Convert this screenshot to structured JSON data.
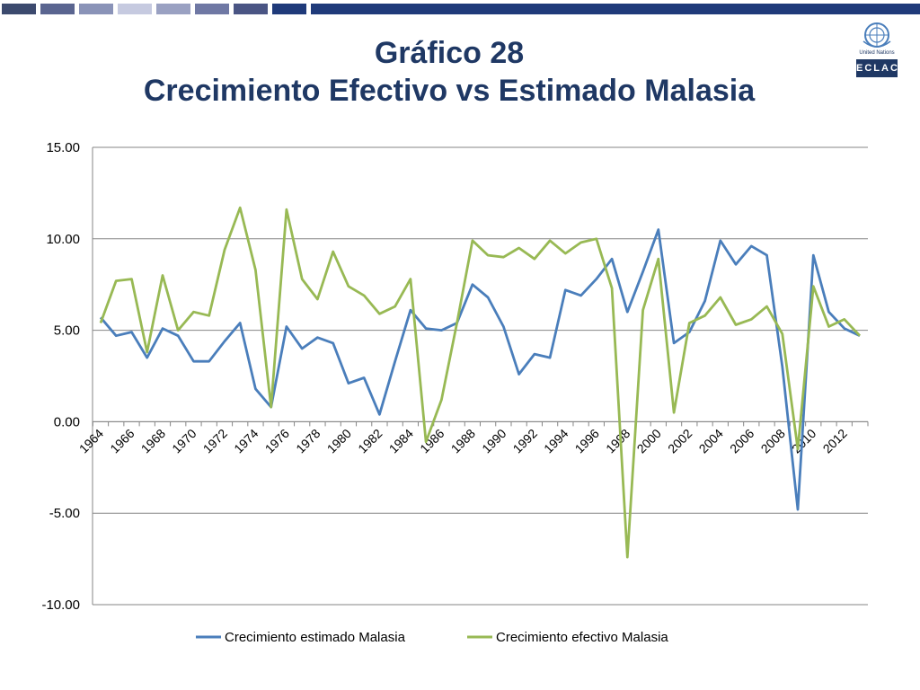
{
  "slide": {
    "title_line1": "Gráfico 28",
    "title_line2": "Crecimiento Efectivo vs Estimado Malasia",
    "logo_un_text": "United Nations",
    "logo_eclac_text": "ECLAC",
    "topbar_colors": [
      "#3c4a6e",
      "#5a6590",
      "#8a93b8",
      "#c6cae0",
      "#9aa1c2",
      "#6f78a4",
      "#4a5584",
      "#1f3a7a",
      "#1f3a7a"
    ]
  },
  "chart_data": {
    "type": "line",
    "title": "",
    "xlabel": "",
    "ylabel": "",
    "ylim": [
      -10,
      15
    ],
    "yticks": [
      15,
      10,
      5,
      0,
      -5,
      -10
    ],
    "ytick_labels": [
      "15.00",
      "10.00",
      "5.00",
      "0.00",
      "-5.00",
      "-10.00"
    ],
    "x": [
      1964,
      1965,
      1966,
      1967,
      1968,
      1969,
      1970,
      1971,
      1972,
      1973,
      1974,
      1975,
      1976,
      1977,
      1978,
      1979,
      1980,
      1981,
      1982,
      1983,
      1984,
      1985,
      1986,
      1987,
      1988,
      1989,
      1990,
      1991,
      1992,
      1993,
      1994,
      1995,
      1996,
      1997,
      1998,
      1999,
      2000,
      2001,
      2002,
      2003,
      2004,
      2005,
      2006,
      2007,
      2008,
      2009,
      2010,
      2011,
      2012,
      2013
    ],
    "xtick_labels": [
      "1964",
      "1966",
      "1968",
      "1970",
      "1972",
      "1974",
      "1976",
      "1978",
      "1980",
      "1982",
      "1984",
      "1986",
      "1988",
      "1990",
      "1992",
      "1994",
      "1996",
      "1998",
      "2000",
      "2002",
      "2004",
      "2006",
      "2008",
      "2010",
      "2012"
    ],
    "grid": "horizontal",
    "legend": "bottom",
    "series": [
      {
        "name": "Crecimiento estimado Malasia",
        "color": "#4a7ebb",
        "values": [
          5.7,
          4.7,
          4.9,
          3.5,
          5.1,
          4.7,
          3.3,
          3.3,
          4.4,
          5.4,
          1.8,
          0.8,
          5.2,
          4.0,
          4.6,
          4.3,
          2.1,
          2.4,
          0.4,
          3.3,
          6.1,
          5.1,
          5.0,
          5.4,
          7.5,
          6.8,
          5.2,
          2.6,
          3.7,
          3.5,
          7.2,
          6.9,
          7.8,
          8.9,
          6.0,
          8.2,
          10.5,
          4.3,
          4.9,
          6.6,
          9.9,
          8.6,
          9.6,
          9.1,
          3.0,
          -4.8,
          9.1,
          6.0,
          5.1,
          4.7
        ]
      },
      {
        "name": "Crecimiento efectivo Malasia",
        "color": "#98b954",
        "values": [
          5.4,
          7.7,
          7.8,
          3.8,
          8.0,
          5.0,
          6.0,
          5.8,
          9.4,
          11.7,
          8.3,
          0.8,
          11.6,
          7.8,
          6.7,
          9.3,
          7.4,
          6.9,
          5.9,
          6.3,
          7.8,
          -1.1,
          1.2,
          5.4,
          9.9,
          9.1,
          9.0,
          9.5,
          8.9,
          9.9,
          9.2,
          9.8,
          10.0,
          7.3,
          -7.4,
          6.1,
          8.9,
          0.5,
          5.4,
          5.8,
          6.8,
          5.3,
          5.6,
          6.3,
          4.8,
          -1.5,
          7.4,
          5.2,
          5.6,
          4.7
        ]
      }
    ]
  }
}
